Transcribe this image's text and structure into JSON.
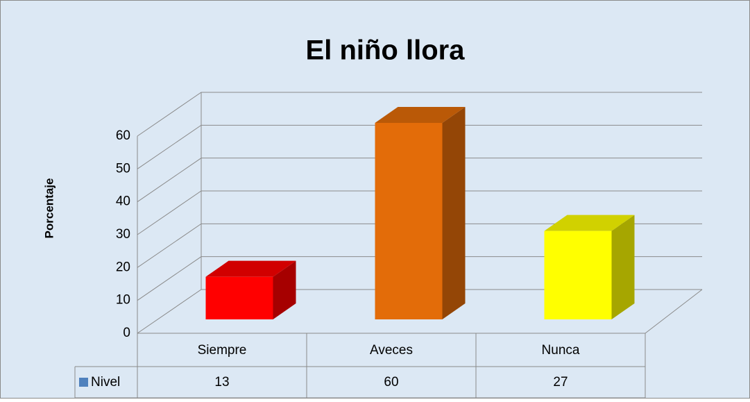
{
  "chart_data": {
    "type": "bar3d",
    "title": "El niño llora",
    "y_label": "Porcentaje",
    "categories": [
      "Siempre",
      "Aveces",
      "Nunca"
    ],
    "series": [
      {
        "name": "Nivel",
        "color": "#4f81bd",
        "values": [
          13,
          60,
          27
        ]
      }
    ],
    "bar_colors": [
      "#ff0000",
      "#e36c09",
      "#ffff00"
    ],
    "ylim": [
      0,
      60
    ],
    "yticks": [
      0,
      10,
      20,
      30,
      40,
      50,
      60
    ],
    "grid": true,
    "data_table": true
  }
}
